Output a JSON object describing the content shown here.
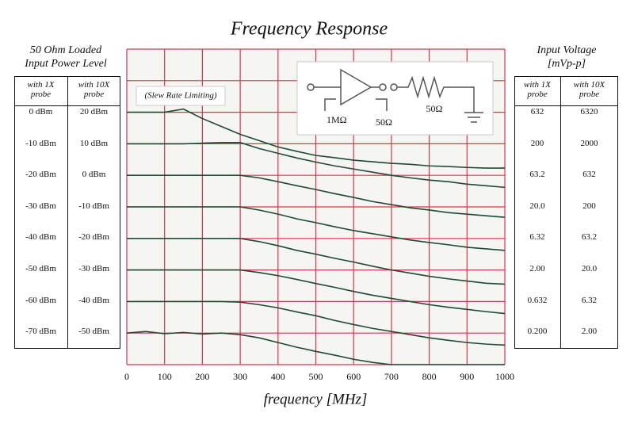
{
  "chart_data": {
    "type": "line",
    "title": "Frequency Response",
    "x_label": "frequency [MHz]",
    "annotation": "(Slew Rate Limiting)",
    "x": [
      0,
      50,
      100,
      150,
      200,
      250,
      300,
      350,
      400,
      450,
      500,
      550,
      600,
      650,
      700,
      750,
      800,
      850,
      900,
      950,
      1000
    ],
    "xlim": [
      0,
      1000
    ],
    "xticks": [
      0,
      100,
      200,
      300,
      400,
      500,
      600,
      700,
      800,
      900,
      1000
    ],
    "ylim": [
      -80,
      20
    ],
    "yticks": [
      -80,
      -70,
      -60,
      -50,
      -40,
      -30,
      -20,
      -10,
      0,
      10,
      20
    ],
    "grid": true,
    "grid_color": "#d9344f",
    "series": [
      {
        "color": "#1f4a35",
        "values": [
          0,
          0,
          0,
          1,
          -2,
          -4.5,
          -7,
          -9,
          -11,
          -12.4,
          -13.7,
          -14.4,
          -15.2,
          -15.7,
          -16.2,
          -16.5,
          -17,
          -17.2,
          -17.5,
          -17.7,
          -17.7
        ]
      },
      {
        "color": "#1f4a35",
        "values": [
          -10,
          -10,
          -10,
          -10,
          -9.8,
          -9.6,
          -9.6,
          -11.5,
          -13,
          -14.5,
          -15.8,
          -17,
          -18,
          -19,
          -20,
          -20.8,
          -21.5,
          -22,
          -22.8,
          -23.3,
          -23.8
        ]
      },
      {
        "color": "#1f4a35",
        "values": [
          -20,
          -20,
          -20,
          -20,
          -20,
          -20,
          -20,
          -20.8,
          -22,
          -23.3,
          -24.5,
          -25.8,
          -27,
          -28.3,
          -29.3,
          -30.3,
          -31,
          -31.8,
          -32.3,
          -32.8,
          -33.3
        ]
      },
      {
        "color": "#1f4a35",
        "values": [
          -30,
          -30,
          -30,
          -30,
          -30,
          -30,
          -30,
          -31,
          -32.3,
          -33.8,
          -35,
          -36.3,
          -37.5,
          -38.5,
          -39.5,
          -40.5,
          -41.3,
          -42,
          -42.8,
          -43.3,
          -43.8
        ]
      },
      {
        "color": "#1f4a35",
        "values": [
          -40,
          -40,
          -40,
          -40,
          -40,
          -40,
          -40,
          -41,
          -42.3,
          -43.8,
          -45,
          -46.3,
          -47.5,
          -48.8,
          -50,
          -51,
          -52,
          -52.8,
          -53.5,
          -54.2,
          -54.5
        ]
      },
      {
        "color": "#1f4a35",
        "values": [
          -50,
          -50,
          -50,
          -50,
          -50,
          -50,
          -50,
          -50.8,
          -51.8,
          -53,
          -54.3,
          -55.5,
          -56.8,
          -58,
          -59,
          -60,
          -61,
          -61.8,
          -62.5,
          -63.2,
          -63.8
        ]
      },
      {
        "color": "#1f4a35",
        "values": [
          -60,
          -60,
          -60,
          -60,
          -60,
          -60,
          -60.2,
          -61,
          -62,
          -63.3,
          -64.5,
          -66,
          -67.3,
          -68.5,
          -69.5,
          -70.5,
          -71.5,
          -72.3,
          -73,
          -73.5,
          -73.8
        ]
      },
      {
        "color": "#1f4a35",
        "values": [
          -70,
          -69.5,
          -70.2,
          -69.8,
          -70.3,
          -70,
          -70.5,
          -71.5,
          -73,
          -74.5,
          -75.8,
          -77,
          -78.3,
          -79.3,
          -80,
          -80,
          -80,
          -80,
          -80,
          -80,
          -80
        ]
      }
    ]
  },
  "circuit": {
    "labels": [
      "1MΩ",
      "50Ω",
      "50Ω"
    ]
  },
  "left_table": {
    "title": [
      "50 Ohm Loaded",
      "Input Power  Level"
    ],
    "headers": [
      "with 1X probe",
      "with 10X probe"
    ],
    "rows": [
      [
        "0 dBm",
        "20 dBm"
      ],
      [
        "-10 dBm",
        "10 dBm"
      ],
      [
        "-20 dBm",
        "0 dBm"
      ],
      [
        "-30 dBm",
        "-10 dBm"
      ],
      [
        "-40 dBm",
        "-20 dBm"
      ],
      [
        "-50 dBm",
        "-30 dBm"
      ],
      [
        "-60 dBm",
        "-40 dBm"
      ],
      [
        "-70 dBm",
        "-50 dBm"
      ]
    ]
  },
  "right_table": {
    "title": [
      "Input Voltage",
      "[mVp-p]"
    ],
    "headers": [
      "with 1X probe",
      "with 10X probe"
    ],
    "rows": [
      [
        "632",
        "6320"
      ],
      [
        "200",
        "2000"
      ],
      [
        "63.2",
        "632"
      ],
      [
        "20.0",
        "200"
      ],
      [
        "6.32",
        "63.2"
      ],
      [
        "2.00",
        "20.0"
      ],
      [
        "0.632",
        "6.32"
      ],
      [
        "0.200",
        "2.00"
      ]
    ]
  }
}
